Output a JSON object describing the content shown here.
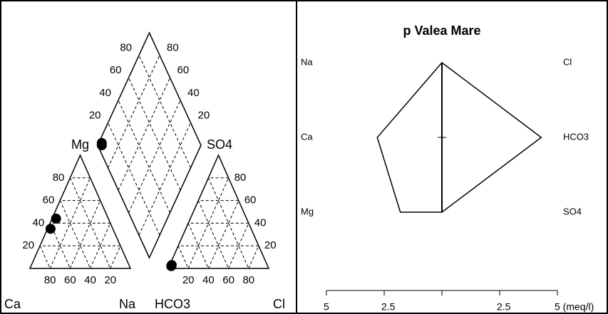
{
  "chart_data": [
    {
      "type": "piper",
      "cation_labels": [
        "Ca",
        "Mg",
        "Na"
      ],
      "anion_labels": [
        "HCO3",
        "SO4",
        "Cl"
      ],
      "ticks": [
        20,
        40,
        60,
        80
      ],
      "samples": [
        {
          "cations": [
            52,
            44,
            4
          ],
          "anions": [
            96,
            2,
            2
          ]
        },
        {
          "cations": [
            62,
            35,
            3
          ],
          "anions": [
            95,
            3,
            2
          ]
        }
      ],
      "color": "#000000"
    },
    {
      "type": "stiff",
      "title": "p Valea Mare",
      "cations": [
        "Na",
        "Ca",
        "Mg"
      ],
      "anions": [
        "Cl",
        "HCO3",
        "SO4"
      ],
      "cation_values": [
        0,
        2.8,
        1.8
      ],
      "anion_values": [
        0,
        4.3,
        0
      ],
      "xlim": [
        -5,
        5
      ],
      "xticks": [
        {
          "value": -5,
          "label": "5"
        },
        {
          "value": -2.5,
          "label": "2.5"
        },
        {
          "value": 0
        },
        {
          "value": 2.5,
          "label": "2.5"
        },
        {
          "value": 5,
          "label": "5 (meq/l)"
        }
      ],
      "color": "#000000"
    }
  ]
}
